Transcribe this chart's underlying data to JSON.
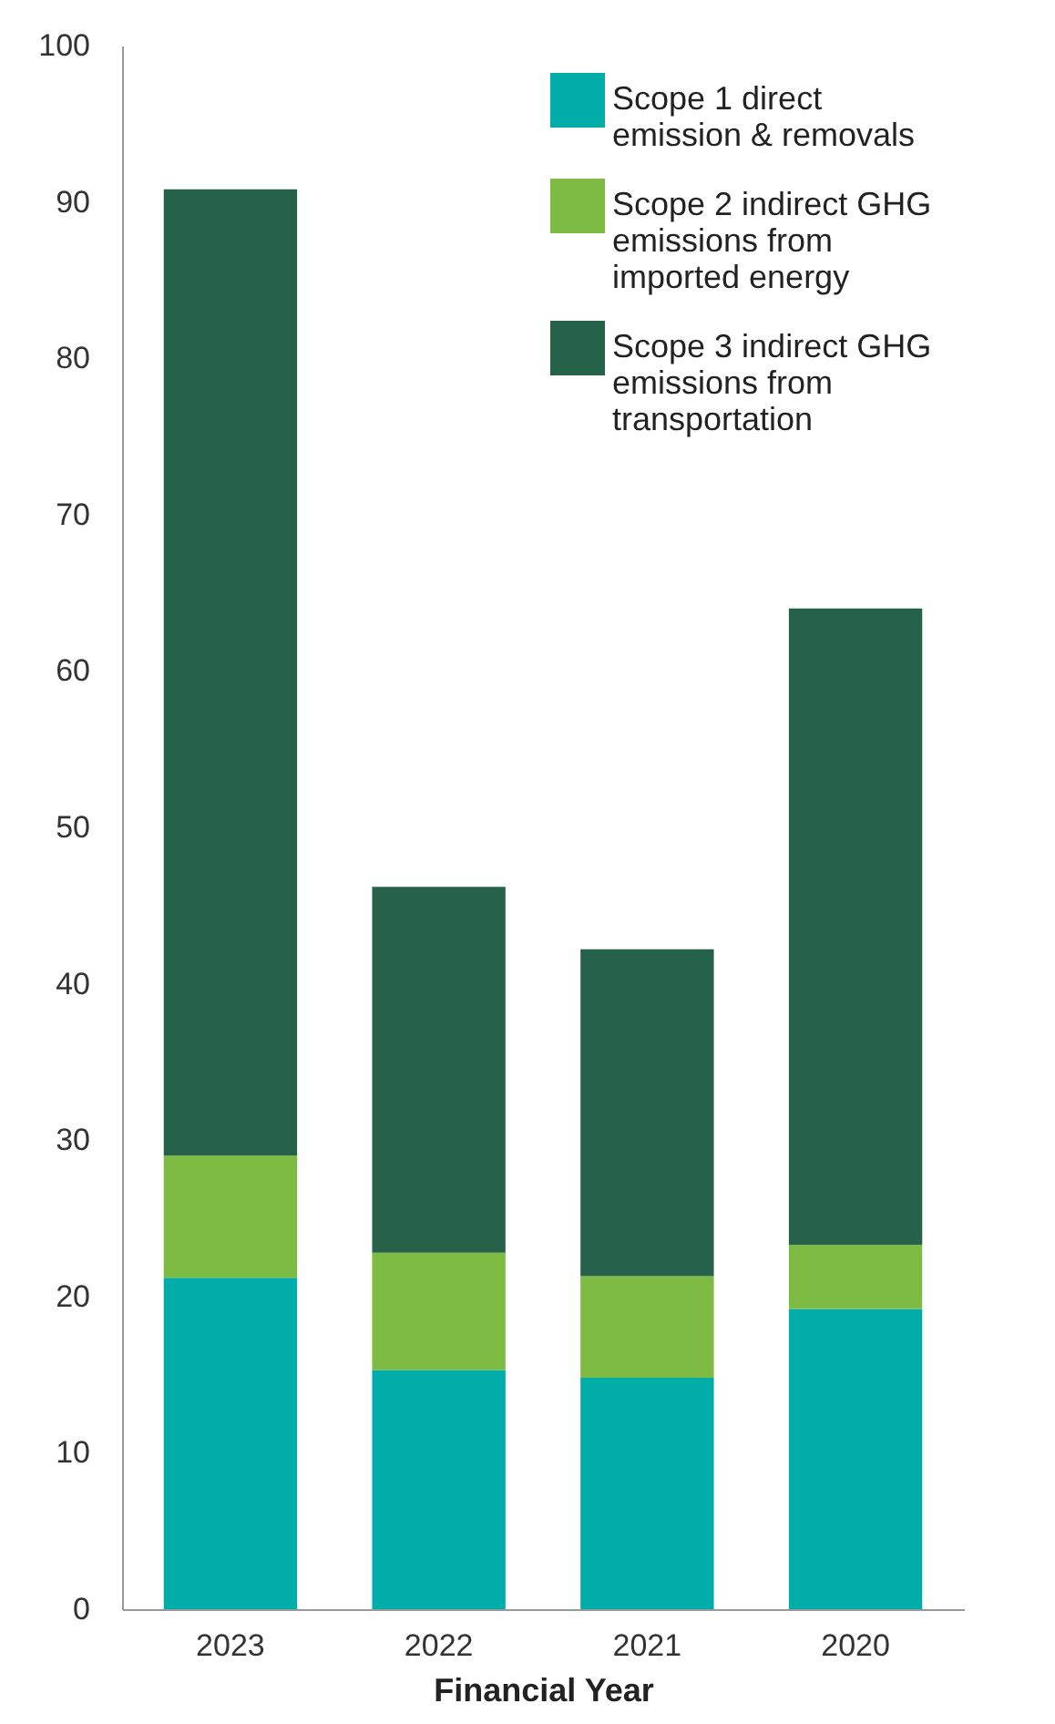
{
  "chart_data": {
    "type": "bar",
    "xlabel": "Financial Year",
    "stacked": true,
    "legend": "top right",
    "grid": false,
    "categories": [
      "2023",
      "2022",
      "2021",
      "2020"
    ],
    "series": [
      {
        "name": "Scope 1 direct emission & removals",
        "color": "#00ada9",
        "values": [
          21.2,
          15.3,
          14.8,
          19.2
        ]
      },
      {
        "name": "Scope 2 indirect GHG emissions from imported energy",
        "color": "#7dbb42",
        "values": [
          7.8,
          7.5,
          6.5,
          4.1
        ]
      },
      {
        "name": "Scope 3 indirect GHG emissions from transportation",
        "color": "#256249",
        "values": [
          61.8,
          23.4,
          20.9,
          40.7
        ]
      }
    ],
    "ylim": [
      0,
      100
    ],
    "yticks": [
      0,
      10,
      20,
      30,
      40,
      50,
      60,
      70,
      80,
      90,
      100
    ]
  }
}
